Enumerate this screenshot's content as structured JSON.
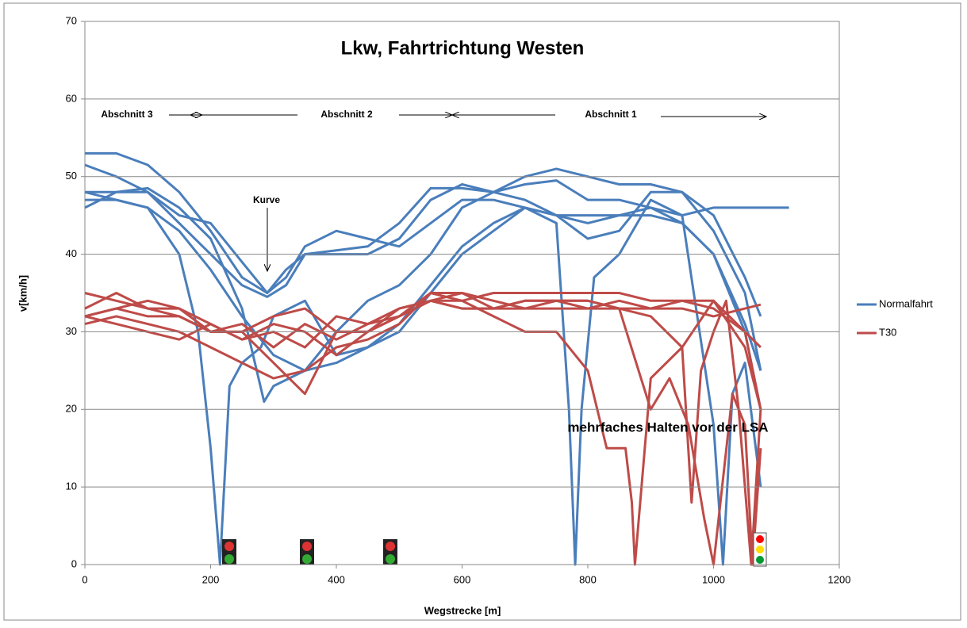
{
  "chart_data": {
    "type": "line",
    "title": "Lkw, Fahrtrichtung Westen",
    "xlabel": "Wegstrecke  [m]",
    "ylabel": "v[km/h]",
    "xlim": [
      0,
      1200
    ],
    "xticks": [
      0,
      200,
      400,
      600,
      800,
      1000,
      1200
    ],
    "ylim": [
      0,
      70
    ],
    "yticks": [
      0,
      10,
      20,
      30,
      40,
      50,
      60,
      70
    ],
    "grid": true,
    "legend": "right",
    "sections": [
      "Abschnitt 3",
      "Abschnitt 2",
      "Abschnitt 1"
    ],
    "annotations": [
      "Kurve",
      "mehrfaches Halten vor der LSA"
    ],
    "series": [
      {
        "name": "Normalfahrt",
        "color": "#4a7ebb",
        "lines": [
          {
            "x": [
              0,
              50,
              100,
              150,
              200,
              250,
              290,
              320,
              350,
              400,
              450,
              500,
              550,
              600,
              650,
              700,
              750,
              800,
              850,
              900,
              950,
              1000,
              1050,
              1075
            ],
            "values": [
              53,
              53,
              51.5,
              48,
              43,
              37,
              35,
              38,
              40,
              40,
              40,
              42,
              47,
              49,
              48,
              49,
              49.5,
              47,
              47,
              46,
              44,
              40,
              31,
              25
            ]
          },
          {
            "x": [
              0,
              50,
              100,
              150,
              200,
              250,
              290,
              320,
              350,
              400,
              450,
              500,
              550,
              600,
              650,
              700,
              750,
              800,
              850,
              900,
              950,
              1000,
              1050,
              1075
            ],
            "values": [
              51.5,
              50,
              48,
              44,
              40,
              36,
              34.5,
              36,
              40,
              40.5,
              41,
              44,
              48.5,
              48.5,
              48,
              50,
              51,
              50,
              49,
              49,
              48,
              45,
              37,
              32
            ]
          },
          {
            "x": [
              0,
              50,
              100,
              150,
              200,
              250,
              290,
              320,
              350,
              400,
              450,
              500,
              550,
              600,
              650,
              700,
              750,
              800,
              850,
              900,
              950,
              1000,
              1050,
              1075,
              1120
            ],
            "values": [
              48,
              48,
              48,
              45,
              44,
              39,
              35,
              37,
              41,
              43,
              42,
              41,
              44,
              47,
              47,
              46,
              45,
              45,
              45,
              46,
              45,
              46,
              46,
              46,
              46
            ]
          },
          {
            "x": [
              0,
              50,
              100,
              150,
              180,
              200,
              215,
              230,
              250,
              280,
              300,
              350,
              400,
              450,
              500,
              550,
              600,
              650,
              700,
              750,
              800,
              850,
              900,
              950,
              1000,
              1050,
              1075
            ],
            "values": [
              47,
              47,
              46,
              40,
              30,
              15,
              0,
              23,
              26,
              28,
              32,
              34,
              27,
              28,
              31,
              36,
              41,
              44,
              46,
              45,
              44,
              45,
              45,
              44,
              40,
              30,
              20
            ]
          },
          {
            "x": [
              0,
              50,
              100,
              150,
              200,
              250,
              285,
              300,
              350,
              400,
              450,
              500,
              550,
              600,
              650,
              700,
              750,
              770,
              780,
              790,
              810,
              850,
              900,
              950,
              1000,
              1015,
              1030,
              1050,
              1075
            ],
            "values": [
              46,
              48,
              48.5,
              46,
              42,
              33,
              21,
              23,
              25,
              26,
              28,
              30,
              35,
              40,
              43,
              46,
              44,
              20,
              0,
              20,
              37,
              40,
              47,
              45,
              18,
              0,
              22,
              26,
              10
            ]
          },
          {
            "x": [
              0,
              50,
              100,
              150,
              200,
              250,
              300,
              350,
              400,
              450,
              500,
              550,
              600,
              650,
              700,
              750,
              800,
              850,
              900,
              950,
              1000,
              1050,
              1075
            ],
            "values": [
              48,
              47,
              46,
              43,
              38,
              32,
              27,
              25,
              30,
              34,
              36,
              40,
              46,
              48,
              47,
              45,
              42,
              43,
              48,
              48,
              43,
              35,
              25
            ]
          }
        ]
      },
      {
        "name": "T30",
        "color": "#be4b48",
        "lines": [
          {
            "x": [
              0,
              50,
              100,
              150,
              200,
              250,
              300,
              350,
              400,
              450,
              500,
              550,
              600,
              650,
              700,
              750,
              800,
              850,
              900,
              950,
              1000,
              1050,
              1075
            ],
            "values": [
              32,
              33,
              34,
              33,
              31,
              29,
              30,
              28,
              32,
              31,
              32,
              34,
              34,
              35,
              35,
              35,
              35,
              35,
              34,
              34,
              33,
              30,
              28
            ]
          },
          {
            "x": [
              0,
              50,
              100,
              150,
              200,
              250,
              300,
              350,
              400,
              450,
              500,
              550,
              600,
              650,
              700,
              750,
              800,
              850,
              900,
              950,
              1000,
              1050,
              1075
            ],
            "values": [
              33,
              35,
              33,
              33,
              30,
              30,
              26,
              22,
              30,
              30,
              32,
              34,
              33,
              33,
              34,
              34,
              33,
              34,
              33,
              33,
              32,
              33,
              33.5
            ]
          },
          {
            "x": [
              0,
              50,
              100,
              150,
              200,
              250,
              300,
              350,
              400,
              450,
              500,
              550,
              600,
              650,
              700,
              750,
              800,
              850,
              900,
              950,
              1000,
              1050,
              1075
            ],
            "values": [
              31,
              32,
              31,
              30,
              28,
              26,
              24,
              25,
              28,
              29,
              31,
              35,
              35,
              34,
              33,
              33,
              33,
              33,
              33,
              34,
              34,
              30,
              20
            ]
          },
          {
            "x": [
              0,
              50,
              100,
              150,
              200,
              250,
              300,
              350,
              400,
              450,
              500,
              550,
              600,
              650,
              700,
              750,
              800,
              830,
              860,
              870,
              875,
              900,
              950,
              1000,
              1050,
              1075
            ],
            "values": [
              35,
              34,
              33,
              32,
              30,
              30,
              32,
              33,
              30,
              30,
              32,
              35,
              34,
              32,
              30,
              30,
              25,
              15,
              15,
              8,
              0,
              24,
              28,
              34,
              28,
              20
            ]
          },
          {
            "x": [
              0,
              50,
              100,
              150,
              200,
              250,
              300,
              350,
              400,
              450,
              500,
              550,
              600,
              650,
              700,
              750,
              800,
              850,
              900,
              950,
              965,
              980,
              1000,
              1020,
              1040,
              1060,
              1075
            ],
            "values": [
              32,
              31,
              30,
              29,
              31,
              29,
              31,
              30,
              27,
              30,
              33,
              34,
              33,
              33,
              34,
              34,
              34,
              33,
              32,
              28,
              8,
              25,
              30,
              34,
              20,
              0,
              20
            ]
          },
          {
            "x": [
              0,
              50,
              100,
              150,
              200,
              250,
              300,
              350,
              400,
              450,
              500,
              550,
              600,
              650,
              700,
              750,
              800,
              850,
              900,
              930,
              960,
              985,
              1000,
              1030,
              1050,
              1062,
              1075
            ],
            "values": [
              32,
              33,
              32,
              32,
              30,
              31,
              28,
              31,
              29,
              31,
              33,
              34,
              35,
              33,
              33,
              34,
              34,
              33,
              20,
              24,
              18,
              6,
              0,
              22,
              18,
              0,
              15
            ]
          }
        ]
      }
    ]
  }
}
